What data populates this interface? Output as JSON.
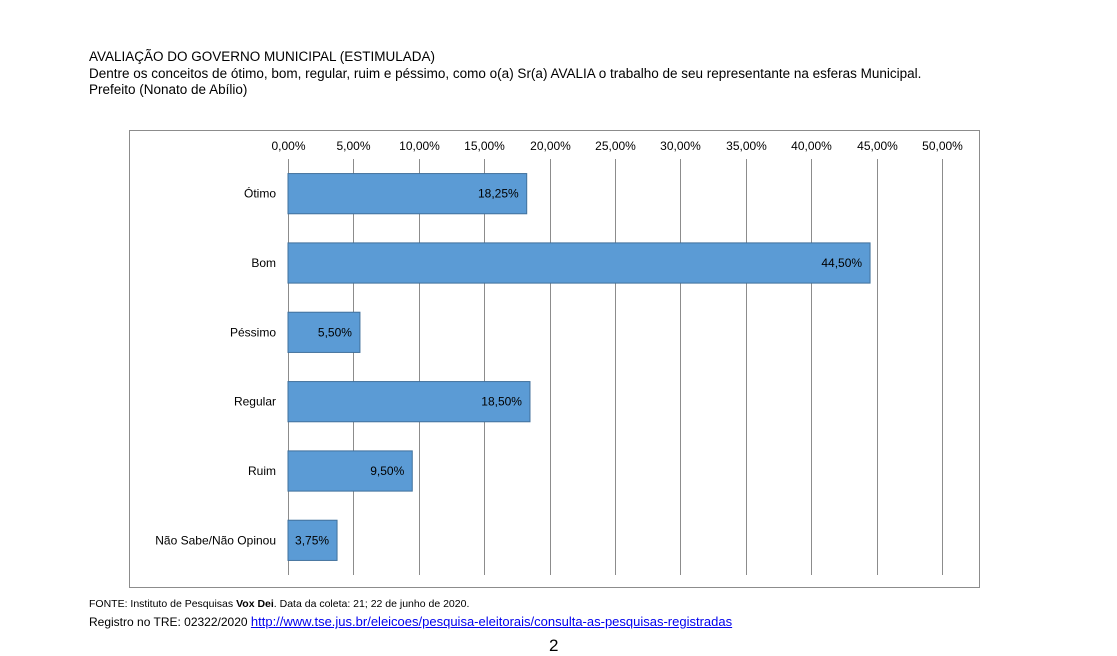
{
  "header": {
    "title": "AVALIAÇÃO DO GOVERNO MUNICIPAL (ESTIMULADA)",
    "question": "Dentre os conceitos de ótimo, bom, regular, ruim e péssimo, como o(a) Sr(a) AVALIA o trabalho de seu representante na esferas Municipal.",
    "subtitle": "Prefeito (Nonato de Abílio)"
  },
  "chart_data": {
    "type": "bar",
    "orientation": "horizontal",
    "categories": [
      "Ótimo",
      "Bom",
      "Péssimo",
      "Regular",
      "Ruim",
      "Não Sabe/Não Opinou"
    ],
    "values": [
      18.25,
      44.5,
      5.5,
      18.5,
      9.5,
      3.75
    ],
    "data_labels": [
      "18,25%",
      "44,50%",
      "5,50%",
      "18,50%",
      "9,50%",
      "3,75%"
    ],
    "xlim": [
      0,
      50
    ],
    "x_ticks": [
      0,
      5,
      10,
      15,
      20,
      25,
      30,
      35,
      40,
      45,
      50
    ],
    "x_tick_labels": [
      "0,00%",
      "5,00%",
      "10,00%",
      "15,00%",
      "20,00%",
      "25,00%",
      "30,00%",
      "35,00%",
      "40,00%",
      "45,00%",
      "50,00%"
    ],
    "axis_position": "top",
    "grid": true,
    "bar_color": "#5b9bd5",
    "bar_edge_color": "#41719c",
    "grid_color": "#8c8c8c"
  },
  "footer": {
    "source_prefix": "FONTE: Instituto de Pesquisas ",
    "source_name": "Vox Dei",
    "source_suffix": ". Data da coleta: 21; 22 de junho de 2020.",
    "registry_prefix": "Registro no TRE: 02322/2020 ",
    "registry_link": "http://www.tse.jus.br/eleicoes/pesquisa-eleitorais/consulta-as-pesquisas-registradas"
  },
  "page_number": "2"
}
